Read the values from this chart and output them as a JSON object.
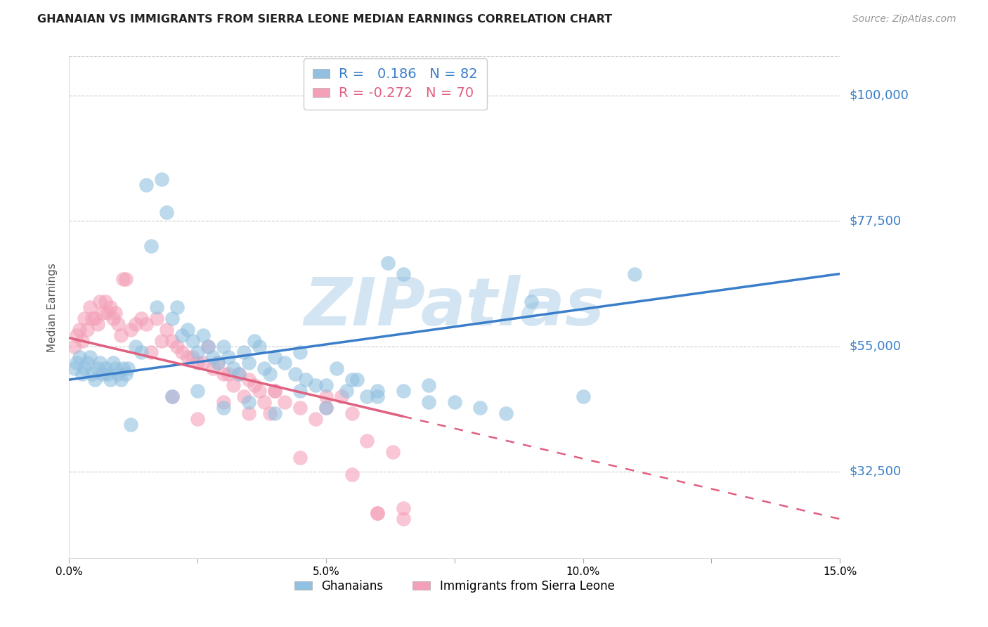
{
  "title": "GHANAIAN VS IMMIGRANTS FROM SIERRA LEONE MEDIAN EARNINGS CORRELATION CHART",
  "source": "Source: ZipAtlas.com",
  "ylabel": "Median Earnings",
  "yticks": [
    32500,
    55000,
    77500,
    100000
  ],
  "ytick_labels": [
    "$32,500",
    "$55,000",
    "$77,500",
    "$100,000"
  ],
  "xmin": 0.0,
  "xmax": 15.0,
  "ymin": 17000,
  "ymax": 107000,
  "blue_R": 0.186,
  "blue_N": 82,
  "pink_R": -0.272,
  "pink_N": 70,
  "blue_color": "#92c0e0",
  "pink_color": "#f4a0b8",
  "blue_line_color": "#3a7dc9",
  "pink_line_color": "#e06080",
  "watermark": "ZIPatlas",
  "watermark_color": "#c5ddf0",
  "legend_series": [
    "Ghanaians",
    "Immigrants from Sierra Leone"
  ],
  "blue_line_x0": 0.0,
  "blue_line_y0": 49000,
  "blue_line_x1": 15.0,
  "blue_line_y1": 68000,
  "pink_line_x0": 0.0,
  "pink_line_y0": 56500,
  "pink_line_x1": 15.0,
  "pink_line_y1": 24000,
  "pink_solid_end_x": 6.5,
  "blue_scatter_x": [
    0.1,
    0.15,
    0.2,
    0.25,
    0.3,
    0.35,
    0.4,
    0.45,
    0.5,
    0.55,
    0.6,
    0.65,
    0.7,
    0.75,
    0.8,
    0.85,
    0.9,
    0.95,
    1.0,
    1.05,
    1.1,
    1.15,
    1.2,
    1.3,
    1.4,
    1.5,
    1.6,
    1.7,
    1.8,
    1.9,
    2.0,
    2.1,
    2.2,
    2.3,
    2.4,
    2.5,
    2.6,
    2.7,
    2.8,
    2.9,
    3.0,
    3.1,
    3.2,
    3.3,
    3.4,
    3.5,
    3.6,
    3.7,
    3.8,
    3.9,
    4.0,
    4.2,
    4.4,
    4.5,
    4.6,
    4.8,
    5.0,
    5.2,
    5.4,
    5.6,
    5.8,
    6.0,
    6.2,
    6.5,
    7.0,
    7.5,
    8.0,
    8.5,
    9.0,
    10.0,
    11.0,
    2.0,
    2.5,
    3.0,
    3.5,
    4.0,
    4.5,
    5.0,
    5.5,
    6.0,
    6.5,
    7.0
  ],
  "blue_scatter_y": [
    51000,
    52000,
    53000,
    50000,
    51000,
    52000,
    53000,
    50000,
    49000,
    51000,
    52000,
    50000,
    51000,
    50000,
    49000,
    52000,
    51000,
    50000,
    49000,
    51000,
    50000,
    51000,
    41000,
    55000,
    54000,
    84000,
    73000,
    62000,
    85000,
    79000,
    60000,
    62000,
    57000,
    58000,
    56000,
    54000,
    57000,
    55000,
    53000,
    52000,
    55000,
    53000,
    51000,
    50000,
    54000,
    52000,
    56000,
    55000,
    51000,
    50000,
    53000,
    52000,
    50000,
    54000,
    49000,
    48000,
    48000,
    51000,
    47000,
    49000,
    46000,
    47000,
    70000,
    68000,
    45000,
    45000,
    44000,
    43000,
    63000,
    46000,
    68000,
    46000,
    47000,
    44000,
    45000,
    43000,
    47000,
    44000,
    49000,
    46000,
    47000,
    48000
  ],
  "pink_scatter_x": [
    0.1,
    0.15,
    0.2,
    0.25,
    0.3,
    0.35,
    0.4,
    0.45,
    0.5,
    0.55,
    0.6,
    0.65,
    0.7,
    0.75,
    0.8,
    0.85,
    0.9,
    0.95,
    1.0,
    1.05,
    1.1,
    1.2,
    1.3,
    1.4,
    1.5,
    1.6,
    1.7,
    1.8,
    1.9,
    2.0,
    2.1,
    2.2,
    2.3,
    2.4,
    2.5,
    2.6,
    2.7,
    2.8,
    2.9,
    3.0,
    3.1,
    3.2,
    3.3,
    3.4,
    3.5,
    3.6,
    3.7,
    3.8,
    3.9,
    4.0,
    4.2,
    4.5,
    4.8,
    5.0,
    5.3,
    5.5,
    5.8,
    6.0,
    6.3,
    6.5,
    2.0,
    2.5,
    3.0,
    3.5,
    4.0,
    4.5,
    5.0,
    5.5,
    6.0,
    6.5
  ],
  "pink_scatter_y": [
    55000,
    57000,
    58000,
    56000,
    60000,
    58000,
    62000,
    60000,
    60000,
    59000,
    63000,
    61000,
    63000,
    61000,
    62000,
    60000,
    61000,
    59000,
    57000,
    67000,
    67000,
    58000,
    59000,
    60000,
    59000,
    54000,
    60000,
    56000,
    58000,
    56000,
    55000,
    54000,
    53000,
    53000,
    52000,
    52000,
    55000,
    51000,
    52000,
    50000,
    50000,
    48000,
    50000,
    46000,
    49000,
    48000,
    47000,
    45000,
    43000,
    47000,
    45000,
    44000,
    42000,
    44000,
    46000,
    43000,
    38000,
    25000,
    36000,
    24000,
    46000,
    42000,
    45000,
    43000,
    47000,
    35000,
    46000,
    32000,
    25000,
    26000
  ]
}
